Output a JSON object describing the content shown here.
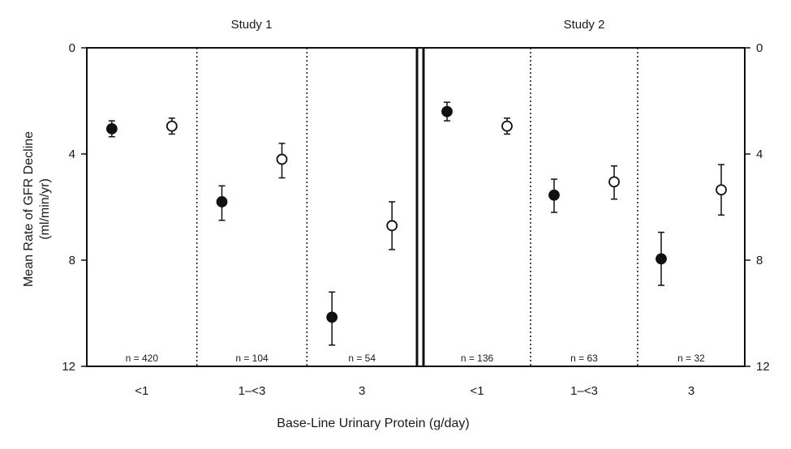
{
  "chart_data": {
    "type": "scatter",
    "ylabel_line1": "Mean Rate of GFR Decline",
    "ylabel_line2": "(ml/min/yr)",
    "xlabel": "Base-Line Urinary Protein (g/day)",
    "yticks": [
      "0",
      "4",
      "8",
      "12"
    ],
    "ylim": [
      0,
      12
    ],
    "y_inverted": true,
    "grid": false,
    "error_bars": true,
    "legend": "none",
    "studies": [
      {
        "title": "Study 1",
        "groups": [
          {
            "category": "<1",
            "n": "n = 420",
            "filled": {
              "y": 3.05,
              "low": 2.75,
              "high": 3.35
            },
            "open": {
              "y": 2.95,
              "low": 2.65,
              "high": 3.25
            }
          },
          {
            "category": "1–<3",
            "n": "n = 104",
            "filled": {
              "y": 5.8,
              "low": 5.2,
              "high": 6.5
            },
            "open": {
              "y": 4.2,
              "low": 3.6,
              "high": 4.9
            }
          },
          {
            "category": "3",
            "n": "n = 54",
            "filled": {
              "y": 10.15,
              "low": 9.2,
              "high": 11.2
            },
            "open": {
              "y": 6.7,
              "low": 5.8,
              "high": 7.6
            }
          }
        ]
      },
      {
        "title": "Study 2",
        "groups": [
          {
            "category": "<1",
            "n": "n = 136",
            "filled": {
              "y": 2.4,
              "low": 2.05,
              "high": 2.75
            },
            "open": {
              "y": 2.95,
              "low": 2.65,
              "high": 3.25
            }
          },
          {
            "category": "1–<3",
            "n": "n = 63",
            "filled": {
              "y": 5.55,
              "low": 4.95,
              "high": 6.2
            },
            "open": {
              "y": 5.05,
              "low": 4.45,
              "high": 5.7
            }
          },
          {
            "category": "3",
            "n": "n = 32",
            "filled": {
              "y": 7.95,
              "low": 6.95,
              "high": 8.95
            },
            "open": {
              "y": 5.35,
              "low": 4.4,
              "high": 6.3
            }
          }
        ]
      }
    ]
  }
}
